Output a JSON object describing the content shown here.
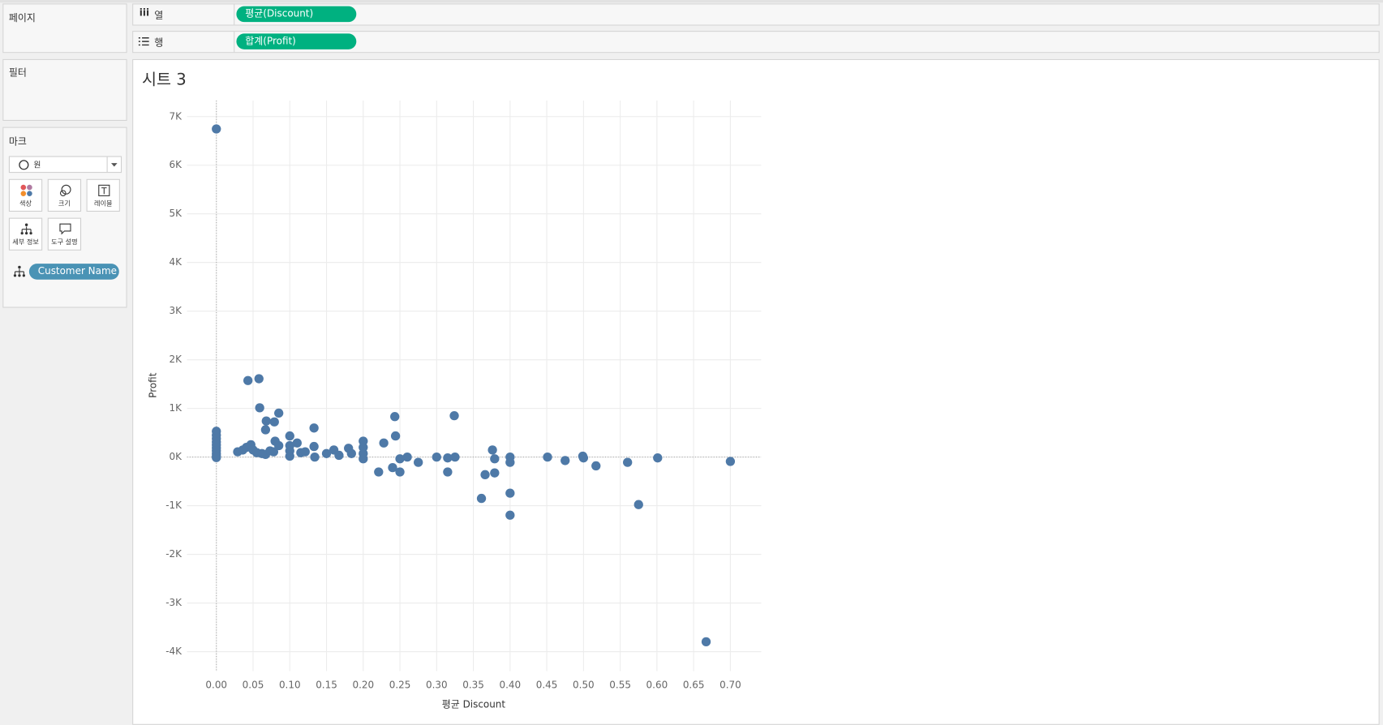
{
  "sidebar": {
    "pages_label": "페이지",
    "filters_label": "필터",
    "marks_label": "마크",
    "mark_type": "원",
    "mark_buttons": [
      "색상",
      "크기",
      "레이블",
      "세부 정보",
      "도구 설명"
    ],
    "detail_pill": "Customer Name"
  },
  "shelves": {
    "columns_label": "열",
    "columns_pill": "평균(Discount)",
    "rows_label": "행",
    "rows_pill": "합계(Profit)"
  },
  "chart_data": {
    "type": "scatter",
    "title": "시트 3",
    "x_label": "평균 Discount",
    "y_label": "Profit",
    "xlim": [
      -0.04,
      0.742
    ],
    "ylim": [
      -4400,
      7330
    ],
    "grid": true,
    "xticks": [
      {
        "value": 0,
        "label": "0.00"
      },
      {
        "value": 0.05,
        "label": "0.05"
      },
      {
        "value": 0.1,
        "label": "0.10"
      },
      {
        "value": 0.15,
        "label": "0.15"
      },
      {
        "value": 0.2,
        "label": "0.20"
      },
      {
        "value": 0.25,
        "label": "0.25"
      },
      {
        "value": 0.3,
        "label": "0.30"
      },
      {
        "value": 0.35,
        "label": "0.35"
      },
      {
        "value": 0.4,
        "label": "0.40"
      },
      {
        "value": 0.45,
        "label": "0.45"
      },
      {
        "value": 0.5,
        "label": "0.50"
      },
      {
        "value": 0.55,
        "label": "0.55"
      },
      {
        "value": 0.6,
        "label": "0.60"
      },
      {
        "value": 0.65,
        "label": "0.65"
      },
      {
        "value": 0.7,
        "label": "0.70"
      }
    ],
    "yticks": [
      {
        "value": 7000,
        "label": "7K"
      },
      {
        "value": 6000,
        "label": "6K"
      },
      {
        "value": 5000,
        "label": "5K"
      },
      {
        "value": 4000,
        "label": "4K"
      },
      {
        "value": 3000,
        "label": "3K"
      },
      {
        "value": 2000,
        "label": "2K"
      },
      {
        "value": 1000,
        "label": "1K"
      },
      {
        "value": 0,
        "label": "0K"
      },
      {
        "value": -1000,
        "label": "-1K"
      },
      {
        "value": -2000,
        "label": "-2K"
      },
      {
        "value": -3000,
        "label": "-3K"
      },
      {
        "value": -4000,
        "label": "-4K"
      }
    ],
    "series": [
      {
        "color": "#4e79a7",
        "x": [
          0,
          0,
          0,
          0,
          0,
          0,
          0,
          0,
          0,
          0,
          0,
          0.043,
          0.058,
          0.059,
          0.068,
          0.067,
          0.079,
          0.085,
          0.1,
          0.133,
          0.243,
          0.324,
          0.244,
          0.228,
          0.029,
          0.036,
          0.041,
          0.047,
          0.05,
          0.055,
          0.062,
          0.067,
          0.073,
          0.078,
          0.08,
          0.085,
          0.1,
          0.1,
          0.1,
          0.11,
          0.115,
          0.121,
          0.133,
          0.134,
          0.15,
          0.16,
          0.167,
          0.18,
          0.184,
          0.2,
          0.2,
          0.2,
          0.2,
          0.221,
          0.24,
          0.25,
          0.25,
          0.26,
          0.275,
          0.3,
          0.315,
          0.315,
          0.325,
          0.361,
          0.366,
          0.376,
          0.379,
          0.379,
          0.4,
          0.4,
          0.4,
          0.4,
          0.451,
          0.475,
          0.499,
          0.5,
          0.517,
          0.56,
          0.575,
          0.601,
          0.667,
          0.7
        ],
        "values": [
          6746,
          530,
          450,
          380,
          310,
          250,
          190,
          130,
          70,
          20,
          -10,
          1573,
          1610,
          1013,
          742,
          561,
          723,
          904,
          434,
          597,
          832,
          850,
          434,
          289,
          108,
          145,
          199,
          253,
          145,
          90,
          72,
          54,
          127,
          108,
          326,
          235,
          235,
          127,
          18,
          289,
          90,
          108,
          217,
          0,
          72,
          145,
          36,
          181,
          72,
          326,
          199,
          72,
          -36,
          -307,
          -217,
          -36,
          -307,
          0,
          -109,
          0,
          -18,
          -307,
          0,
          -850,
          -362,
          145,
          -36,
          -326,
          0,
          -109,
          -742,
          -1194,
          0,
          -72,
          18,
          -18,
          -181,
          -109,
          -977,
          -18,
          -3798,
          -90
        ]
      }
    ]
  }
}
